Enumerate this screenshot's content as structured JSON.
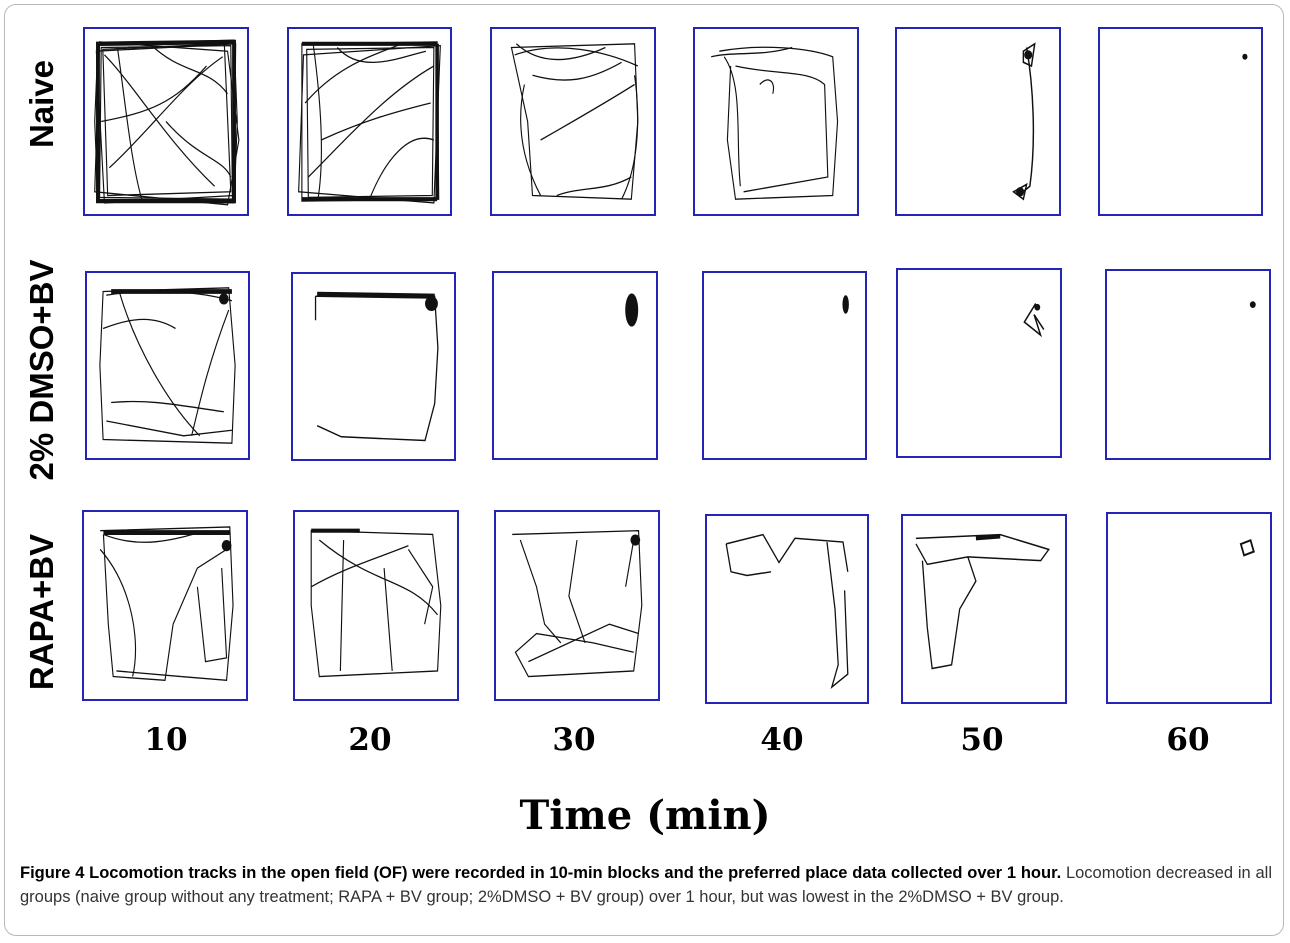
{
  "figure": {
    "row_labels": [
      "Naive",
      "2% DMSO+BV",
      "RAPA+BV"
    ],
    "time_ticks": [
      "10",
      "20",
      "30",
      "40",
      "50",
      "60"
    ],
    "x_axis_title": "Time (min)",
    "panel_border_color": "#2424b8",
    "track_color": "#111111"
  },
  "caption": {
    "title": "Figure 4 Locomotion tracks in the open field (OF) were recorded in 10-min blocks and the preferred place data collected over 1 hour.",
    "body": "Locomotion decreased in all groups (naive group without any treatment; RAPA + BV group; 2%DMSO + BV group) over 1 hour, but was lowest in the 2%DMSO + BV group."
  }
}
